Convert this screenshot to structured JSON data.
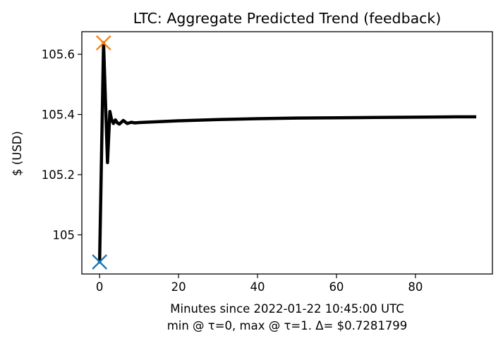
{
  "chart_data": {
    "type": "line",
    "title": "LTC: Aggregate Predicted Trend (feedback)",
    "xlabel": "Minutes since 2022-01-22 10:45:00 UTC",
    "xlabel2": "min @ τ=0, max @ τ=1. Δ= $0.7281799",
    "ylabel": "$ (USD)",
    "xlim": [
      -4.5,
      99.5
    ],
    "ylim": [
      104.87,
      105.675
    ],
    "xticks": [
      0,
      20,
      40,
      60,
      80
    ],
    "xtick_labels": [
      "0",
      "20",
      "40",
      "60",
      "80"
    ],
    "yticks": [
      105.0,
      105.2,
      105.4,
      105.6
    ],
    "ytick_labels": [
      "105",
      "105.2",
      "105.4",
      "105.6"
    ],
    "grid": false,
    "series": [
      {
        "color": "#000000",
        "x": [
          0,
          1,
          2,
          2.6,
          3,
          3.5,
          4,
          4.5,
          5,
          6,
          7,
          8,
          9,
          10,
          15,
          20,
          30,
          40,
          50,
          60,
          70,
          80,
          90,
          95
        ],
        "y": [
          104.91,
          105.638,
          105.24,
          105.41,
          105.385,
          105.37,
          105.382,
          105.372,
          105.368,
          105.38,
          105.37,
          105.374,
          105.372,
          105.373,
          105.376,
          105.379,
          105.383,
          105.386,
          105.388,
          105.389,
          105.39,
          105.391,
          105.392,
          105.392
        ]
      }
    ],
    "markers": [
      {
        "name": "min",
        "x": 0,
        "y": 104.91,
        "color": "#1f77b4",
        "symbol": "x"
      },
      {
        "name": "max",
        "x": 1,
        "y": 105.638,
        "color": "#ff7f0e",
        "symbol": "x"
      }
    ]
  }
}
